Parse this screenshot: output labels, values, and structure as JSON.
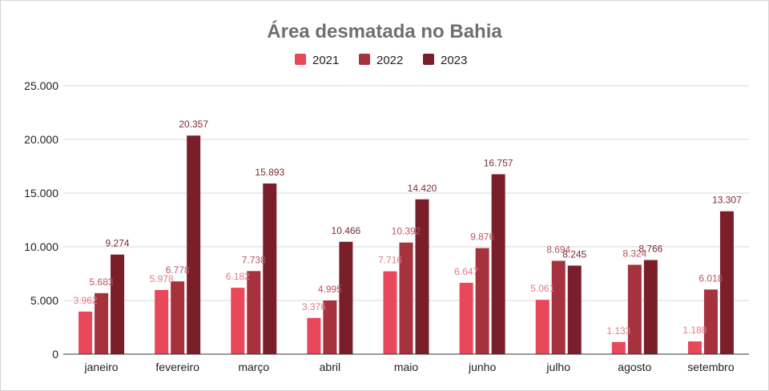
{
  "chart_data": {
    "type": "bar",
    "title": "Área desmatada no Bahia",
    "xlabel": "",
    "ylabel": "",
    "categories": [
      "janeiro",
      "fevereiro",
      "março",
      "abril",
      "maio",
      "junho",
      "julho",
      "agosto",
      "setembro"
    ],
    "series": [
      {
        "name": "2021",
        "color": "#e8485a",
        "label_color": "#e57a85",
        "values": [
          3962,
          5978,
          6182,
          3376,
          7716,
          6647,
          5061,
          1133,
          1188
        ],
        "labels": [
          "3.962",
          "5.978",
          "6.182",
          "3.376",
          "7.716",
          "6.647",
          "5.061",
          "1.133",
          "1.188"
        ]
      },
      {
        "name": "2022",
        "color": "#a6323e",
        "label_color": "#b8545e",
        "values": [
          5683,
          6778,
          7738,
          4995,
          10392,
          9876,
          8694,
          8324,
          6018
        ],
        "labels": [
          "5.683",
          "6.778",
          "7.738",
          "4.995",
          "10.392",
          "9.876",
          "8.694",
          "8.324",
          "6.018"
        ]
      },
      {
        "name": "2023",
        "color": "#7a1f2a",
        "label_color": "#7a2b35",
        "values": [
          9274,
          20357,
          15893,
          10466,
          14420,
          16757,
          8245,
          8766,
          13307
        ],
        "labels": [
          "9.274",
          "20.357",
          "15.893",
          "10.466",
          "14.420",
          "16.757",
          "8.245",
          "8.766",
          "13.307"
        ]
      }
    ],
    "ylim": [
      0,
      25000
    ],
    "yticks": [
      0,
      5000,
      10000,
      15000,
      20000,
      25000
    ],
    "ytick_labels": [
      "0",
      "5.000",
      "10.000",
      "15.000",
      "20.000",
      "25.000"
    ],
    "grid": true,
    "legend": "top-center"
  }
}
